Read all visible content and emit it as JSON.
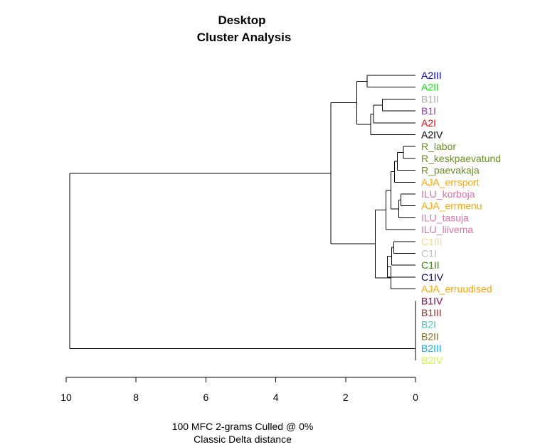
{
  "chart_data": {
    "type": "dendrogram",
    "title": "Desktop",
    "subtitle": "Cluster Analysis",
    "xlabel": "100 MFC 2-grams Culled @ 0%",
    "xlabel2": "Classic Delta distance",
    "xlim": [
      10,
      0
    ],
    "xticks": [
      10,
      8,
      6,
      4,
      2,
      0
    ],
    "leaves": [
      {
        "label": "A2III",
        "color": "#0000ff"
      },
      {
        "label": "A2II",
        "color": "#00ee00"
      },
      {
        "label": "B1II",
        "color": "#aaaaaa"
      },
      {
        "label": "B1I",
        "color": "#9932cc"
      },
      {
        "label": "A2I",
        "color": "#ff0000"
      },
      {
        "label": "A2IV",
        "color": "#000000"
      },
      {
        "label": "R_labor",
        "color": "#6b8e23"
      },
      {
        "label": "R_keskpaevatund",
        "color": "#6b8e23"
      },
      {
        "label": "R_paevakaja",
        "color": "#6b8e23"
      },
      {
        "label": "AJA_errsport",
        "color": "#ffa500"
      },
      {
        "label": "ILU_korboja",
        "color": "#e86fa6"
      },
      {
        "label": "AJA_errmenu",
        "color": "#ffa500"
      },
      {
        "label": "ILU_tasuja",
        "color": "#e86fa6"
      },
      {
        "label": "ILU_liivema",
        "color": "#e86fa6"
      },
      {
        "label": "C1III",
        "color": "#eedd82"
      },
      {
        "label": "C1I",
        "color": "#c0c0c0"
      },
      {
        "label": "C1II",
        "color": "#2e8b00"
      },
      {
        "label": "C1IV",
        "color": "#000080"
      },
      {
        "label": "AJA_erruudised",
        "color": "#ffa500"
      },
      {
        "label": "B1IV",
        "color": "#8b0045"
      },
      {
        "label": "B1III",
        "color": "#a52a2a"
      },
      {
        "label": "B2I",
        "color": "#40c8c8"
      },
      {
        "label": "B2II",
        "color": "#8b6914"
      },
      {
        "label": "B2III",
        "color": "#00b2ee"
      },
      {
        "label": "B2IV",
        "color": "#ccff33"
      }
    ],
    "merges": [
      {
        "id": "m1",
        "left": "A2III",
        "right": "A2II",
        "height": 1.38
      },
      {
        "id": "m2",
        "left": "B1II",
        "right": "B1I",
        "height": 0.95
      },
      {
        "id": "m3",
        "left": "m2",
        "right": "A2I",
        "height": 1.2
      },
      {
        "id": "m4",
        "left": "m3",
        "right": "A2IV",
        "height": 1.28
      },
      {
        "id": "m5",
        "left": "m1",
        "right": "m4",
        "height": 1.68
      },
      {
        "id": "m6",
        "left": "R_labor",
        "right": "R_keskpaevatund",
        "height": 0.35
      },
      {
        "id": "m7",
        "left": "m6",
        "right": "R_paevakaja",
        "height": 0.52
      },
      {
        "id": "m8",
        "left": "AJA_errsport",
        "right": "m7",
        "height": 0.6
      },
      {
        "id": "m9",
        "left": "ILU_korboja",
        "right": "AJA_errmenu",
        "height": 0.42
      },
      {
        "id": "m10",
        "left": "m9",
        "right": "ILU_tasuja",
        "height": 0.48
      },
      {
        "id": "m11",
        "left": "m8",
        "right": "m10",
        "height": 0.7
      },
      {
        "id": "m12",
        "left": "m11",
        "right": "ILU_liivema",
        "height": 0.85
      },
      {
        "id": "m13",
        "left": "C1III",
        "right": "C1I",
        "height": 0.62
      },
      {
        "id": "m14",
        "left": "m13",
        "right": "C1II",
        "height": 0.68
      },
      {
        "id": "m15",
        "left": "m14",
        "right": "C1IV",
        "height": 0.8
      },
      {
        "id": "m16",
        "left": "m15",
        "right": "AJA_erruudised",
        "height": 0.7
      },
      {
        "id": "m17",
        "left": "m12",
        "right": "m16",
        "height": 1.15
      },
      {
        "id": "m18",
        "left": "m5",
        "right": "m17",
        "height": 2.42
      },
      {
        "id": "m19",
        "left": "B1IV",
        "right": "B1III",
        "height": 0.0
      },
      {
        "id": "m20",
        "left": "m19",
        "right": "B2I",
        "height": 0.0
      },
      {
        "id": "m21",
        "left": "m20",
        "right": "B2II",
        "height": 0.0
      },
      {
        "id": "m22",
        "left": "m21",
        "right": "B2III",
        "height": 0.0
      },
      {
        "id": "m23",
        "left": "m22",
        "right": "B2IV",
        "height": 0.0
      },
      {
        "id": "m24",
        "left": "m18",
        "right": "m23",
        "height": 9.9
      }
    ]
  }
}
